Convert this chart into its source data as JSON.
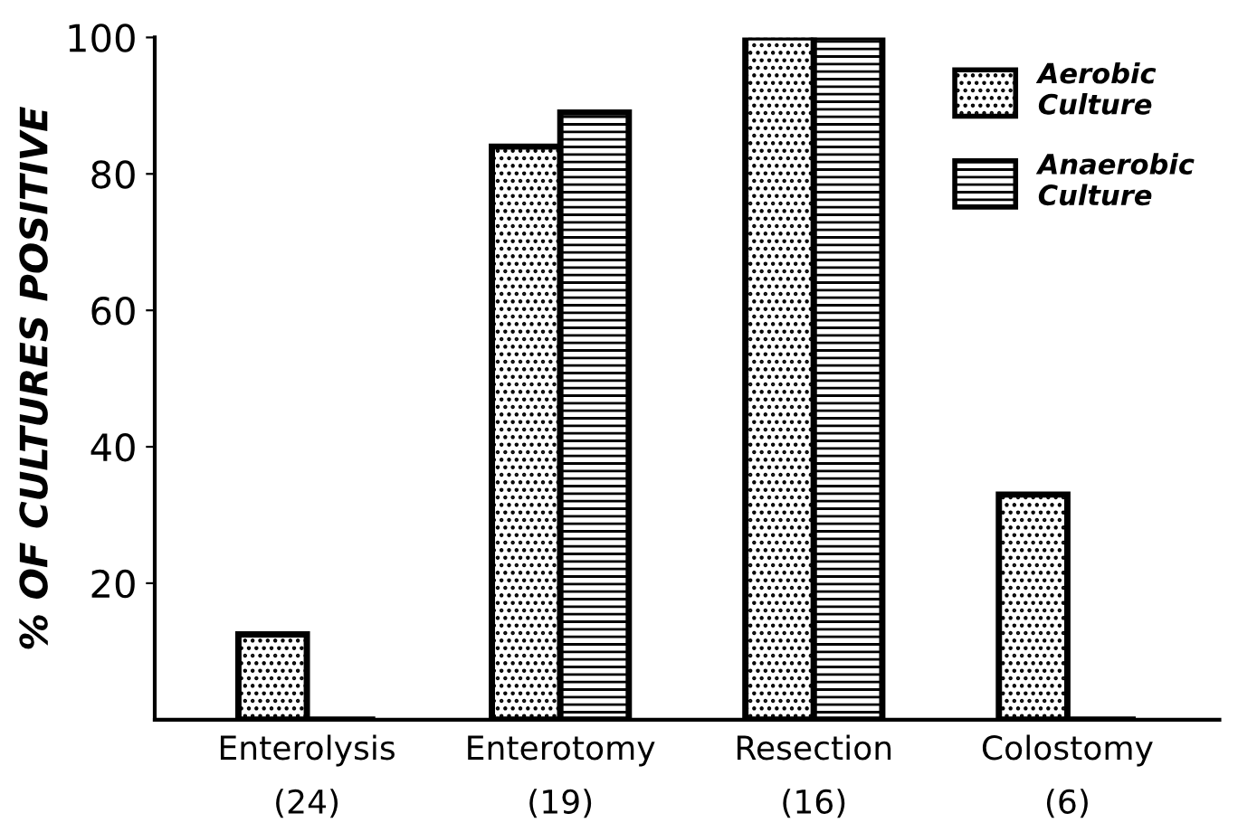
{
  "chart_data": {
    "type": "bar",
    "ylabel": "% OF CULTURES POSITIVE",
    "categories": [
      "Enterolysis\n(24)",
      "Enterotomy\n(19)",
      "Resection\n(16)",
      "Colostomy\n(6)"
    ],
    "series": [
      {
        "name": "Aerobic\nCulture",
        "color": "#000000",
        "values": [
          12.5,
          84,
          100,
          33
        ]
      },
      {
        "name": "Anaerobic\nCulture",
        "color": "#000000",
        "values": [
          0,
          89,
          100,
          0
        ]
      }
    ],
    "ylim": [
      0,
      100
    ],
    "yticks": [
      20,
      40,
      60,
      80,
      100
    ],
    "grid": false,
    "legend": "top right"
  }
}
